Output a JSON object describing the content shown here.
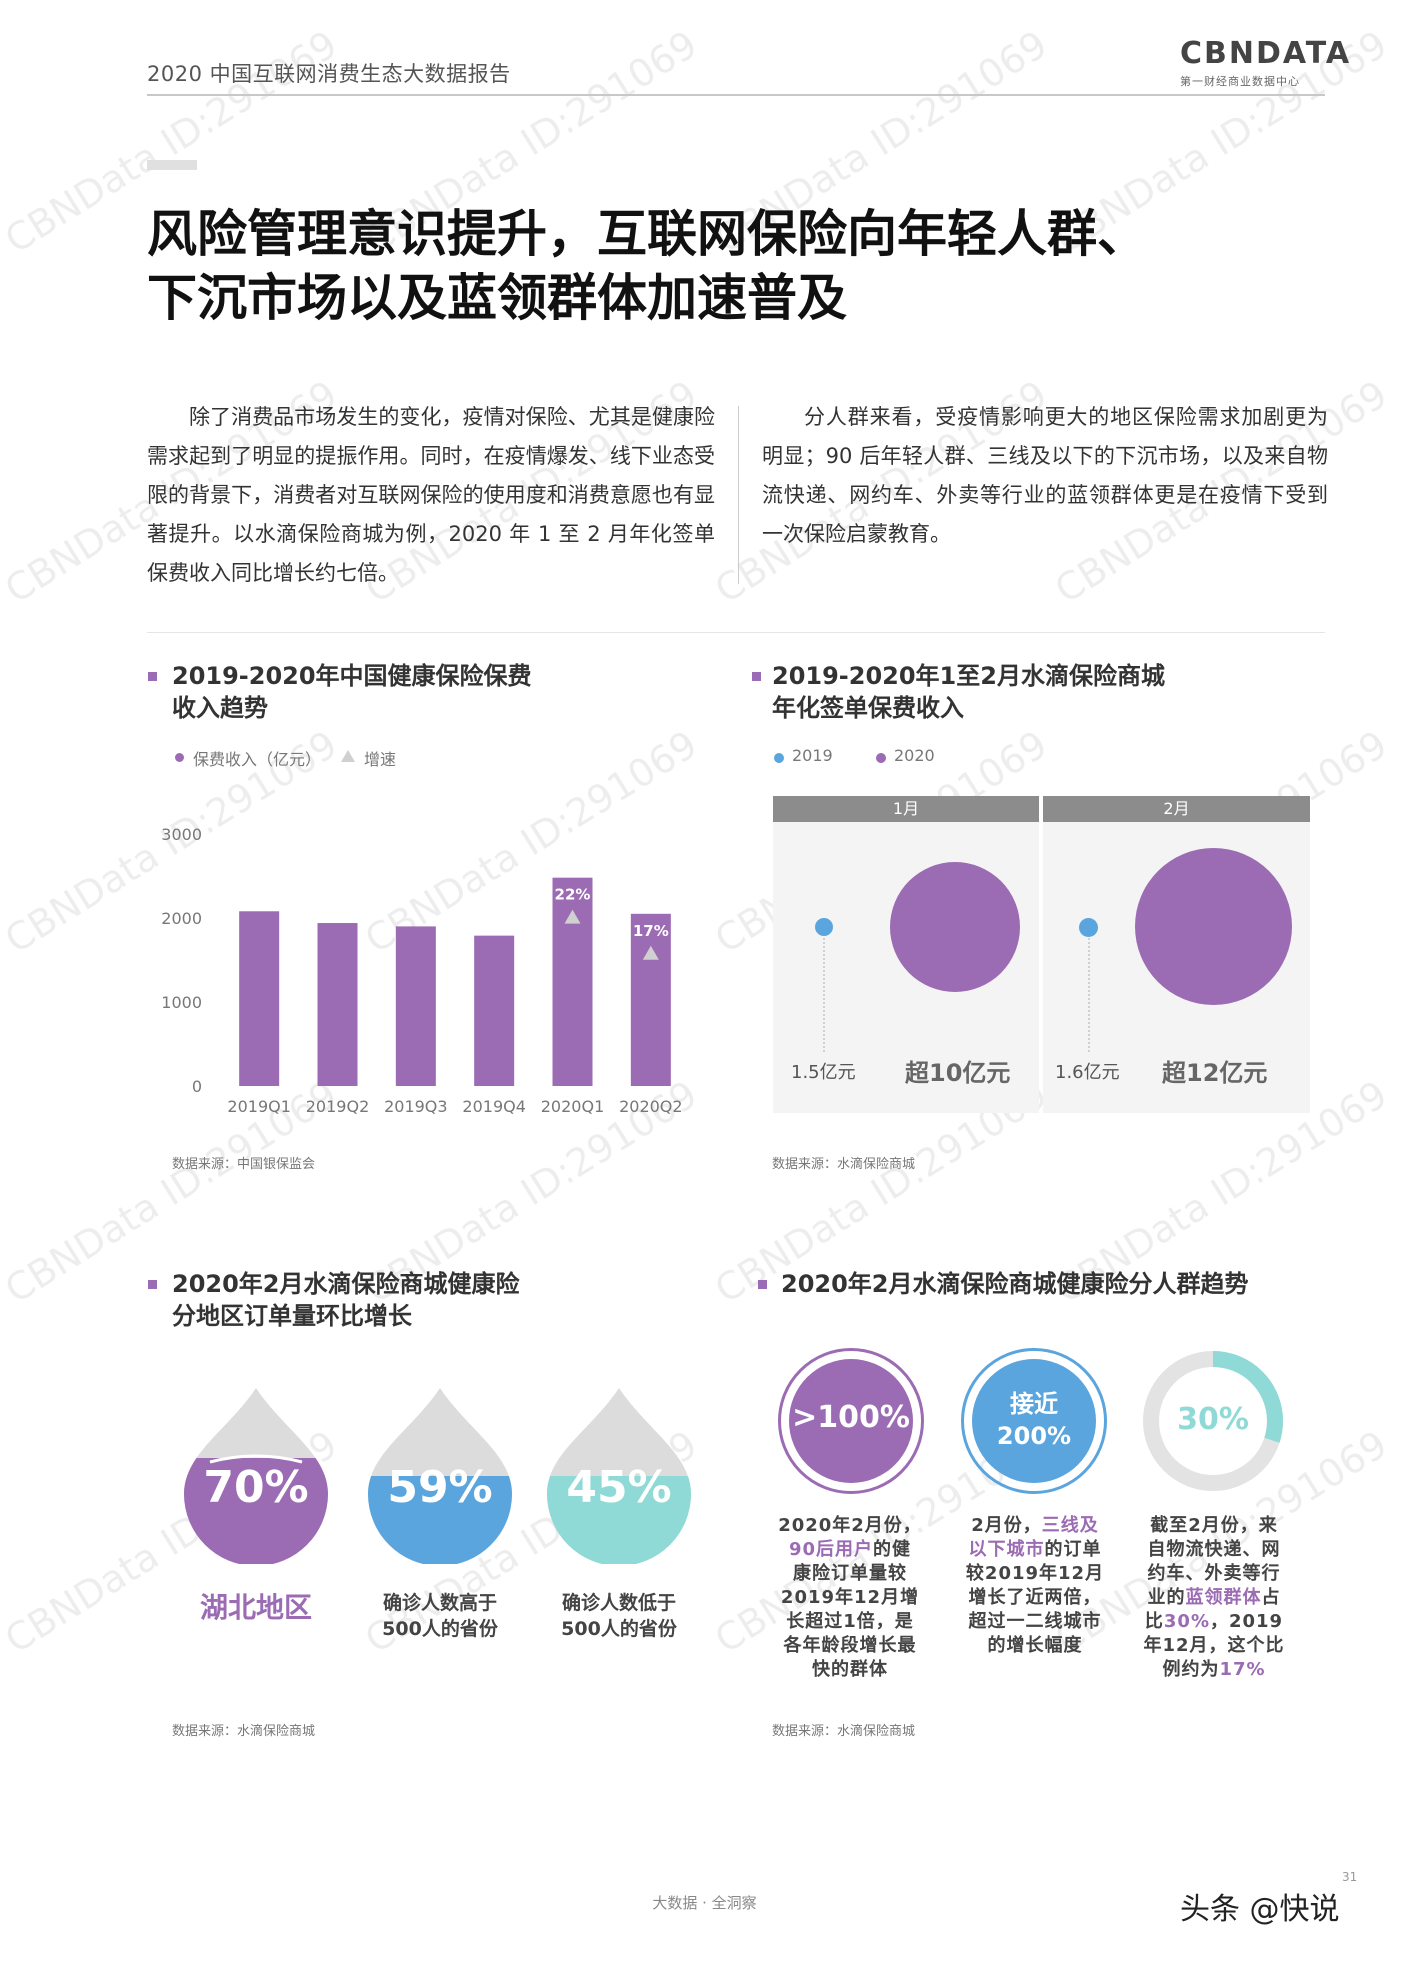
{
  "header": {
    "title": "2020 中国互联网消费生态大数据报告",
    "logo": "CBNDATA",
    "logo_sub": "第一财经商业数据中心"
  },
  "main_title": {
    "line1": "风险管理意识提升，互联网保险向年轻人群、",
    "line2": "下沉市场以及蓝领群体加速普及"
  },
  "paragraphs": {
    "left": "除了消费品市场发生的变化，疫情对保险、尤其是健康险需求起到了明显的提振作用。同时，在疫情爆发、线下业态受限的背景下，消费者对互联网保险的使用度和消费意愿也有显著提升。以水滴保险商城为例，2020 年 1 至 2 月年化签单保费收入同比增长约七倍。",
    "right": "分人群来看，受疫情影响更大的地区保险需求加剧更为明显；90 后年轻人群、三线及以下的下沉市场，以及来自物流快递、网约车、外卖等行业的蓝领群体更是在疫情下受到一次保险启蒙教育。"
  },
  "section1": {
    "title_line1": "2019-2020年中国健康保险保费",
    "title_line2": "收入趋势",
    "legend_revenue": "保费收入（亿元）",
    "legend_growth": "增速",
    "source": "数据来源：中国银保监会"
  },
  "chart_data": {
    "type": "bar",
    "categories": [
      "2019Q1",
      "2019Q2",
      "2019Q3",
      "2019Q4",
      "2020Q1",
      "2020Q2"
    ],
    "series": [
      {
        "name": "保费收入（亿元）",
        "values": [
          2080,
          1940,
          1900,
          1790,
          2480,
          2050
        ]
      },
      {
        "name": "增速",
        "values": [
          null,
          null,
          null,
          null,
          "22%",
          "17%"
        ]
      }
    ],
    "y_ticks": [
      "0",
      "1000",
      "2000",
      "3000"
    ],
    "ylim": [
      0,
      3000
    ],
    "colors": {
      "bar": "#9b6bb3",
      "growth_marker": "#d0d0d0"
    }
  },
  "section2": {
    "title_line1": "2019-2020年1至2月水滴保险商城",
    "title_line2": "年化签单保费收入",
    "legend_2019": "2019",
    "legend_2020": "2020",
    "panels": [
      {
        "month": "1月",
        "v2019": "1.5亿元",
        "v2020": "超10亿元"
      },
      {
        "month": "2月",
        "v2019": "1.6亿元",
        "v2020": "超12亿元"
      }
    ],
    "source": "数据来源：水滴保险商城",
    "colors": {
      "c2019": "#5aa5de",
      "c2020": "#9b6bb3"
    }
  },
  "section3": {
    "title_line1": "2020年2月水滴保险商城健康险",
    "title_line2": "分地区订单量环比增长",
    "drops": [
      {
        "value": "70%",
        "label": "湖北地区",
        "fill": 0.7,
        "color": "#9b6bb3"
      },
      {
        "value": "59%",
        "label_line1": "确诊人数高于",
        "label_line2": "500人的省份",
        "fill": 0.59,
        "color": "#5aa5de"
      },
      {
        "value": "45%",
        "label_line1": "确诊人数低于",
        "label_line2": "500人的省份",
        "fill": 0.45,
        "color": "#8fdad6"
      }
    ],
    "source": "数据来源：水滴保险商城"
  },
  "section4": {
    "title": "2020年2月水滴保险商城健康险分人群趋势",
    "rings": [
      {
        "value": ">100%",
        "color": "#9b6bb3"
      },
      {
        "value_line1": "接近",
        "value_line2": "200%",
        "color": "#5aa5de"
      },
      {
        "value": "30%",
        "fill": 0.3,
        "color": "#8fdad6"
      }
    ],
    "desc1": {
      "l1a": "2020年2月份，",
      "l2a": "90后用户",
      "l2b": "的健",
      "l3": "康险订单量较",
      "l4": "2019年12月增",
      "l5": "长超过1倍，是",
      "l6": "各年龄段增长最",
      "l7": "快的群体"
    },
    "desc2": {
      "l1a": "2月份，",
      "l1b": "三线及",
      "l2a": "以下城市",
      "l2b": "的订单",
      "l3": "较2019年12月",
      "l4": "增长了近两倍，",
      "l5": "超过一二线城市",
      "l6": "的增长幅度"
    },
    "desc3": {
      "l1": "截至2月份，来",
      "l2": "自物流快递、网",
      "l3": "约车、外卖等行",
      "l4a": "业的",
      "l4b": "蓝领群体",
      "l4c": "占",
      "l5a": "比",
      "l5b": "30%",
      "l5c": "，2019",
      "l6": "年12月，这个比",
      "l7a": "例约为",
      "l7b": "17%"
    },
    "source": "数据来源：水滴保险商城"
  },
  "footer": {
    "text": "大数据 · 全洞察",
    "page_number": "31"
  },
  "watermark_user": "头条 @快说",
  "watermark_text": "CBNData ID:291069"
}
